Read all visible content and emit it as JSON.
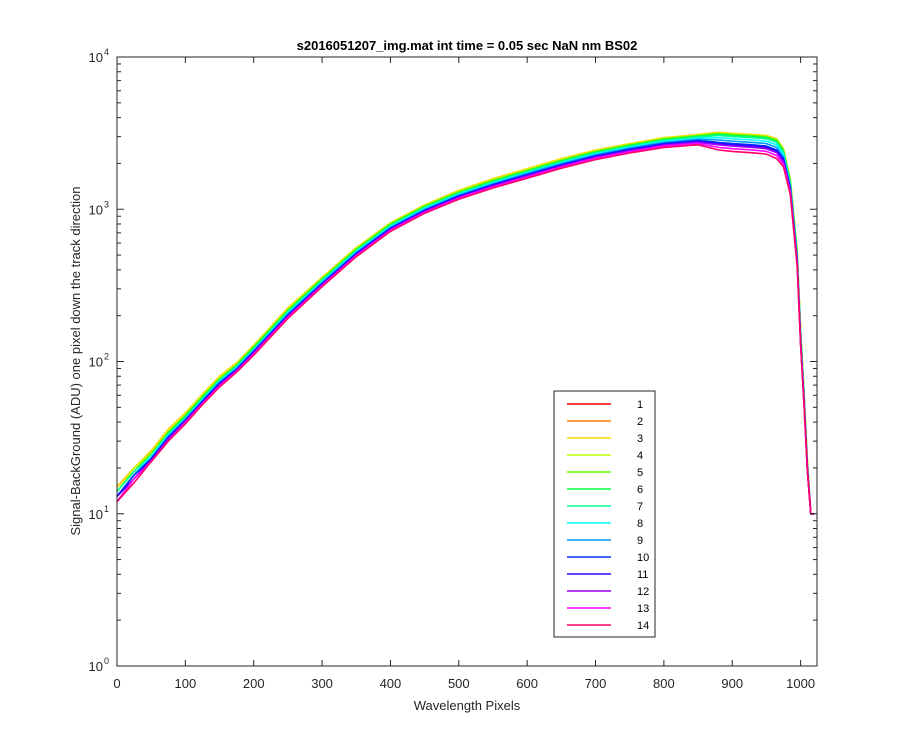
{
  "chart_data": {
    "type": "line",
    "title": "s2016051207_img.mat int time = 0.05 sec  NaN nm BS02",
    "xlabel": "Wavelength Pixels",
    "ylabel": "Signal-BackGround (ADU) one pixel down the track direction",
    "xlim": [
      0,
      1024
    ],
    "ylim": [
      1,
      10000
    ],
    "yscale": "log",
    "grid": false,
    "legend_position": "lower-right",
    "x_ticks": [
      "0",
      "100",
      "200",
      "300",
      "400",
      "500",
      "600",
      "700",
      "800",
      "900",
      "1000"
    ],
    "y_ticks": [
      {
        "base": "10",
        "exp": "0"
      },
      {
        "base": "10",
        "exp": "1"
      },
      {
        "base": "10",
        "exp": "2"
      },
      {
        "base": "10",
        "exp": "3"
      },
      {
        "base": "10",
        "exp": "4"
      }
    ],
    "x": [
      0,
      25,
      50,
      75,
      100,
      125,
      150,
      175,
      200,
      250,
      300,
      350,
      400,
      450,
      500,
      550,
      600,
      650,
      700,
      750,
      800,
      850,
      880,
      900,
      930,
      950,
      965,
      975,
      985,
      995,
      1000,
      1005,
      1010,
      1015,
      1020
    ],
    "series": [
      {
        "name": "1",
        "color": "#ff0000",
        "values": [
          15,
          20,
          25,
          35,
          45,
          60,
          78,
          95,
          125,
          220,
          350,
          550,
          800,
          1050,
          1300,
          1550,
          1800,
          2100,
          2400,
          2650,
          2900,
          3050,
          3100,
          3050,
          3000,
          2950,
          2800,
          2400,
          1500,
          500,
          150,
          60,
          20,
          10,
          10
        ]
      },
      {
        "name": "2",
        "color": "#ff7f00",
        "values": [
          15,
          20,
          25,
          35,
          46,
          60,
          79,
          97,
          127,
          222,
          355,
          555,
          810,
          1060,
          1320,
          1570,
          1830,
          2130,
          2420,
          2680,
          2930,
          3080,
          3150,
          3100,
          3050,
          3000,
          2850,
          2450,
          1550,
          520,
          160,
          62,
          22,
          10,
          10
        ]
      },
      {
        "name": "3",
        "color": "#ffd700",
        "values": [
          15,
          20,
          26,
          36,
          46,
          61,
          80,
          98,
          128,
          225,
          358,
          560,
          815,
          1070,
          1330,
          1590,
          1850,
          2150,
          2450,
          2700,
          2950,
          3100,
          3200,
          3150,
          3100,
          3050,
          2900,
          2500,
          1580,
          530,
          160,
          62,
          22,
          10,
          10
        ]
      },
      {
        "name": "4",
        "color": "#bfff00",
        "values": [
          14,
          20,
          25,
          35,
          45,
          60,
          78,
          96,
          126,
          220,
          352,
          552,
          805,
          1055,
          1310,
          1560,
          1820,
          2120,
          2410,
          2660,
          2910,
          3060,
          3150,
          3100,
          3050,
          3000,
          2850,
          2450,
          1550,
          520,
          160,
          62,
          22,
          10,
          10
        ]
      },
      {
        "name": "5",
        "color": "#66ff00",
        "values": [
          14,
          19,
          25,
          34,
          44,
          59,
          77,
          95,
          125,
          218,
          350,
          548,
          800,
          1050,
          1300,
          1550,
          1800,
          2100,
          2400,
          2650,
          2900,
          3050,
          3150,
          3100,
          3050,
          3000,
          2850,
          2450,
          1550,
          520,
          160,
          62,
          22,
          10,
          10
        ]
      },
      {
        "name": "6",
        "color": "#00ff40",
        "values": [
          14,
          19,
          24,
          34,
          44,
          58,
          76,
          94,
          123,
          215,
          345,
          540,
          790,
          1035,
          1285,
          1530,
          1780,
          2070,
          2370,
          2620,
          2870,
          3010,
          3100,
          3050,
          3000,
          2950,
          2800,
          2400,
          1500,
          500,
          150,
          60,
          20,
          10,
          10
        ]
      },
      {
        "name": "7",
        "color": "#00ff99",
        "values": [
          14,
          19,
          24,
          33,
          43,
          57,
          75,
          93,
          121,
          212,
          340,
          535,
          780,
          1025,
          1270,
          1510,
          1760,
          2050,
          2340,
          2590,
          2830,
          2980,
          3050,
          3000,
          2950,
          2900,
          2750,
          2350,
          1480,
          490,
          150,
          60,
          20,
          10,
          10
        ]
      },
      {
        "name": "8",
        "color": "#00ffff",
        "values": [
          13,
          18,
          24,
          33,
          42,
          56,
          74,
          91,
          119,
          208,
          335,
          528,
          770,
          1010,
          1255,
          1490,
          1740,
          2020,
          2310,
          2550,
          2790,
          2930,
          2950,
          2900,
          2850,
          2800,
          2650,
          2300,
          1450,
          480,
          145,
          58,
          20,
          10,
          10
        ]
      },
      {
        "name": "9",
        "color": "#0099ff",
        "values": [
          13,
          18,
          23,
          32,
          42,
          55,
          73,
          90,
          118,
          205,
          330,
          520,
          760,
          995,
          1240,
          1470,
          1720,
          1990,
          2280,
          2520,
          2750,
          2880,
          2850,
          2800,
          2750,
          2700,
          2550,
          2200,
          1400,
          470,
          140,
          57,
          20,
          10,
          10
        ]
      },
      {
        "name": "10",
        "color": "#0033ff",
        "values": [
          13,
          18,
          23,
          32,
          41,
          55,
          72,
          89,
          116,
          202,
          325,
          512,
          750,
          985,
          1220,
          1450,
          1690,
          1960,
          2240,
          2480,
          2700,
          2830,
          2750,
          2700,
          2650,
          2600,
          2450,
          2150,
          1380,
          460,
          140,
          56,
          20,
          10,
          10
        ]
      },
      {
        "name": "11",
        "color": "#3300ff",
        "values": [
          13,
          17,
          23,
          31,
          41,
          54,
          71,
          88,
          115,
          200,
          322,
          508,
          742,
          975,
          1210,
          1440,
          1670,
          1940,
          2220,
          2450,
          2670,
          2790,
          2700,
          2650,
          2600,
          2550,
          2400,
          2100,
          1350,
          450,
          135,
          55,
          20,
          10,
          10
        ]
      },
      {
        "name": "12",
        "color": "#9900ff",
        "values": [
          12,
          17,
          22,
          31,
          40,
          53,
          70,
          87,
          113,
          197,
          318,
          500,
          735,
          965,
          1195,
          1420,
          1650,
          1920,
          2190,
          2420,
          2640,
          2750,
          2650,
          2600,
          2550,
          2500,
          2350,
          2050,
          1320,
          440,
          135,
          54,
          19,
          10,
          10
        ]
      },
      {
        "name": "13",
        "color": "#ff00ff",
        "values": [
          12,
          17,
          22,
          30,
          40,
          53,
          69,
          86,
          112,
          195,
          314,
          495,
          725,
          950,
          1180,
          1400,
          1630,
          1890,
          2160,
          2380,
          2600,
          2700,
          2550,
          2500,
          2450,
          2400,
          2250,
          1980,
          1280,
          430,
          130,
          53,
          19,
          10,
          10
        ]
      },
      {
        "name": "14",
        "color": "#ff0066",
        "values": [
          12,
          16,
          22,
          30,
          39,
          52,
          68,
          85,
          110,
          192,
          310,
          488,
          715,
          940,
          1165,
          1380,
          1600,
          1860,
          2120,
          2340,
          2550,
          2650,
          2450,
          2400,
          2350,
          2300,
          2150,
          1900,
          1250,
          420,
          130,
          52,
          19,
          10,
          10
        ]
      }
    ]
  }
}
